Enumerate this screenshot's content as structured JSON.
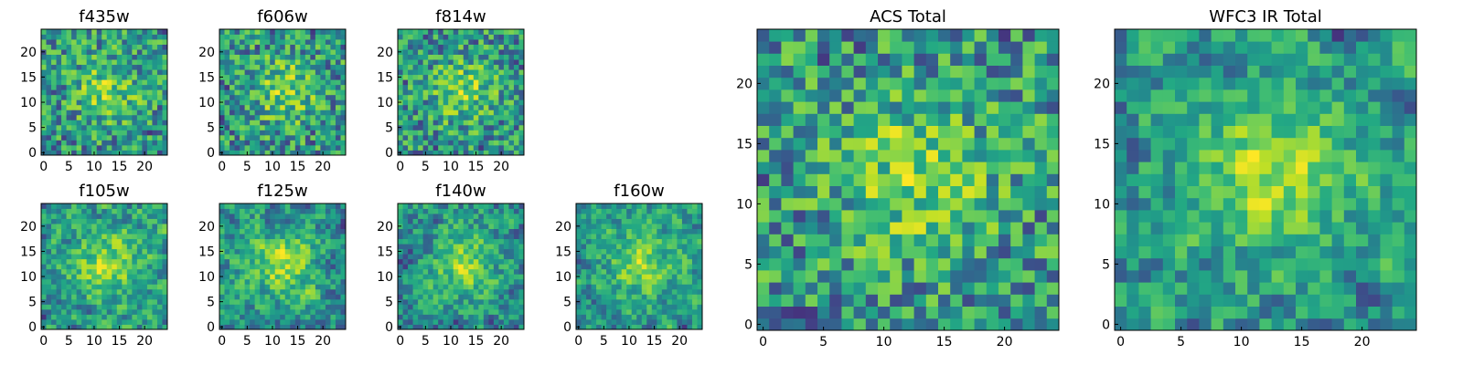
{
  "colormap": "viridis",
  "colors": {
    "viridis_dark": "#440154",
    "viridis_mid": "#21918c",
    "viridis_bright": "#fde725"
  },
  "chart_data": [
    {
      "type": "heatmap",
      "title": "f435w",
      "rows": 25,
      "cols": 25,
      "xlim": [
        0,
        24
      ],
      "ylim": [
        0,
        24
      ],
      "xticks": [
        0,
        5,
        10,
        15,
        20
      ],
      "yticks": [
        0,
        5,
        10,
        15,
        20
      ],
      "grid": false,
      "seed": 11,
      "smooth": 0
    },
    {
      "type": "heatmap",
      "title": "f606w",
      "rows": 25,
      "cols": 25,
      "xlim": [
        0,
        24
      ],
      "ylim": [
        0,
        24
      ],
      "xticks": [
        0,
        5,
        10,
        15,
        20
      ],
      "yticks": [
        0,
        5,
        10,
        15,
        20
      ],
      "grid": false,
      "seed": 23,
      "smooth": 0
    },
    {
      "type": "heatmap",
      "title": "f814w",
      "rows": 25,
      "cols": 25,
      "xlim": [
        0,
        24
      ],
      "ylim": [
        0,
        24
      ],
      "xticks": [
        0,
        5,
        10,
        15,
        20
      ],
      "yticks": [
        0,
        5,
        10,
        15,
        20
      ],
      "grid": false,
      "seed": 37,
      "smooth": 0
    },
    {
      "type": "heatmap",
      "title": "f105w",
      "rows": 25,
      "cols": 25,
      "xlim": [
        0,
        24
      ],
      "ylim": [
        0,
        24
      ],
      "xticks": [
        0,
        5,
        10,
        15,
        20
      ],
      "yticks": [
        0,
        5,
        10,
        15,
        20
      ],
      "grid": false,
      "seed": 41,
      "smooth": 1
    },
    {
      "type": "heatmap",
      "title": "f125w",
      "rows": 25,
      "cols": 25,
      "xlim": [
        0,
        24
      ],
      "ylim": [
        0,
        24
      ],
      "xticks": [
        0,
        5,
        10,
        15,
        20
      ],
      "yticks": [
        0,
        5,
        10,
        15,
        20
      ],
      "grid": false,
      "seed": 53,
      "smooth": 1
    },
    {
      "type": "heatmap",
      "title": "f140w",
      "rows": 25,
      "cols": 25,
      "xlim": [
        0,
        24
      ],
      "ylim": [
        0,
        24
      ],
      "xticks": [
        0,
        5,
        10,
        15,
        20
      ],
      "yticks": [
        0,
        5,
        10,
        15,
        20
      ],
      "grid": false,
      "seed": 67,
      "smooth": 1
    },
    {
      "type": "heatmap",
      "title": "f160w",
      "rows": 25,
      "cols": 25,
      "xlim": [
        0,
        24
      ],
      "ylim": [
        0,
        24
      ],
      "xticks": [
        0,
        5,
        10,
        15,
        20
      ],
      "yticks": [
        0,
        5,
        10,
        15,
        20
      ],
      "grid": false,
      "seed": 79,
      "smooth": 1
    },
    {
      "type": "heatmap",
      "title": "ACS Total",
      "rows": 25,
      "cols": 25,
      "xlim": [
        0,
        24
      ],
      "ylim": [
        0,
        24
      ],
      "xticks": [
        0,
        5,
        10,
        15,
        20
      ],
      "yticks": [
        0,
        5,
        10,
        15,
        20
      ],
      "grid": false,
      "seed": 97,
      "smooth": 0
    },
    {
      "type": "heatmap",
      "title": "WFC3 IR Total",
      "rows": 25,
      "cols": 25,
      "xlim": [
        0,
        24
      ],
      "ylim": [
        0,
        24
      ],
      "xticks": [
        0,
        5,
        10,
        15,
        20
      ],
      "yticks": [
        0,
        5,
        10,
        15,
        20
      ],
      "grid": false,
      "seed": 113,
      "smooth": 1
    }
  ]
}
